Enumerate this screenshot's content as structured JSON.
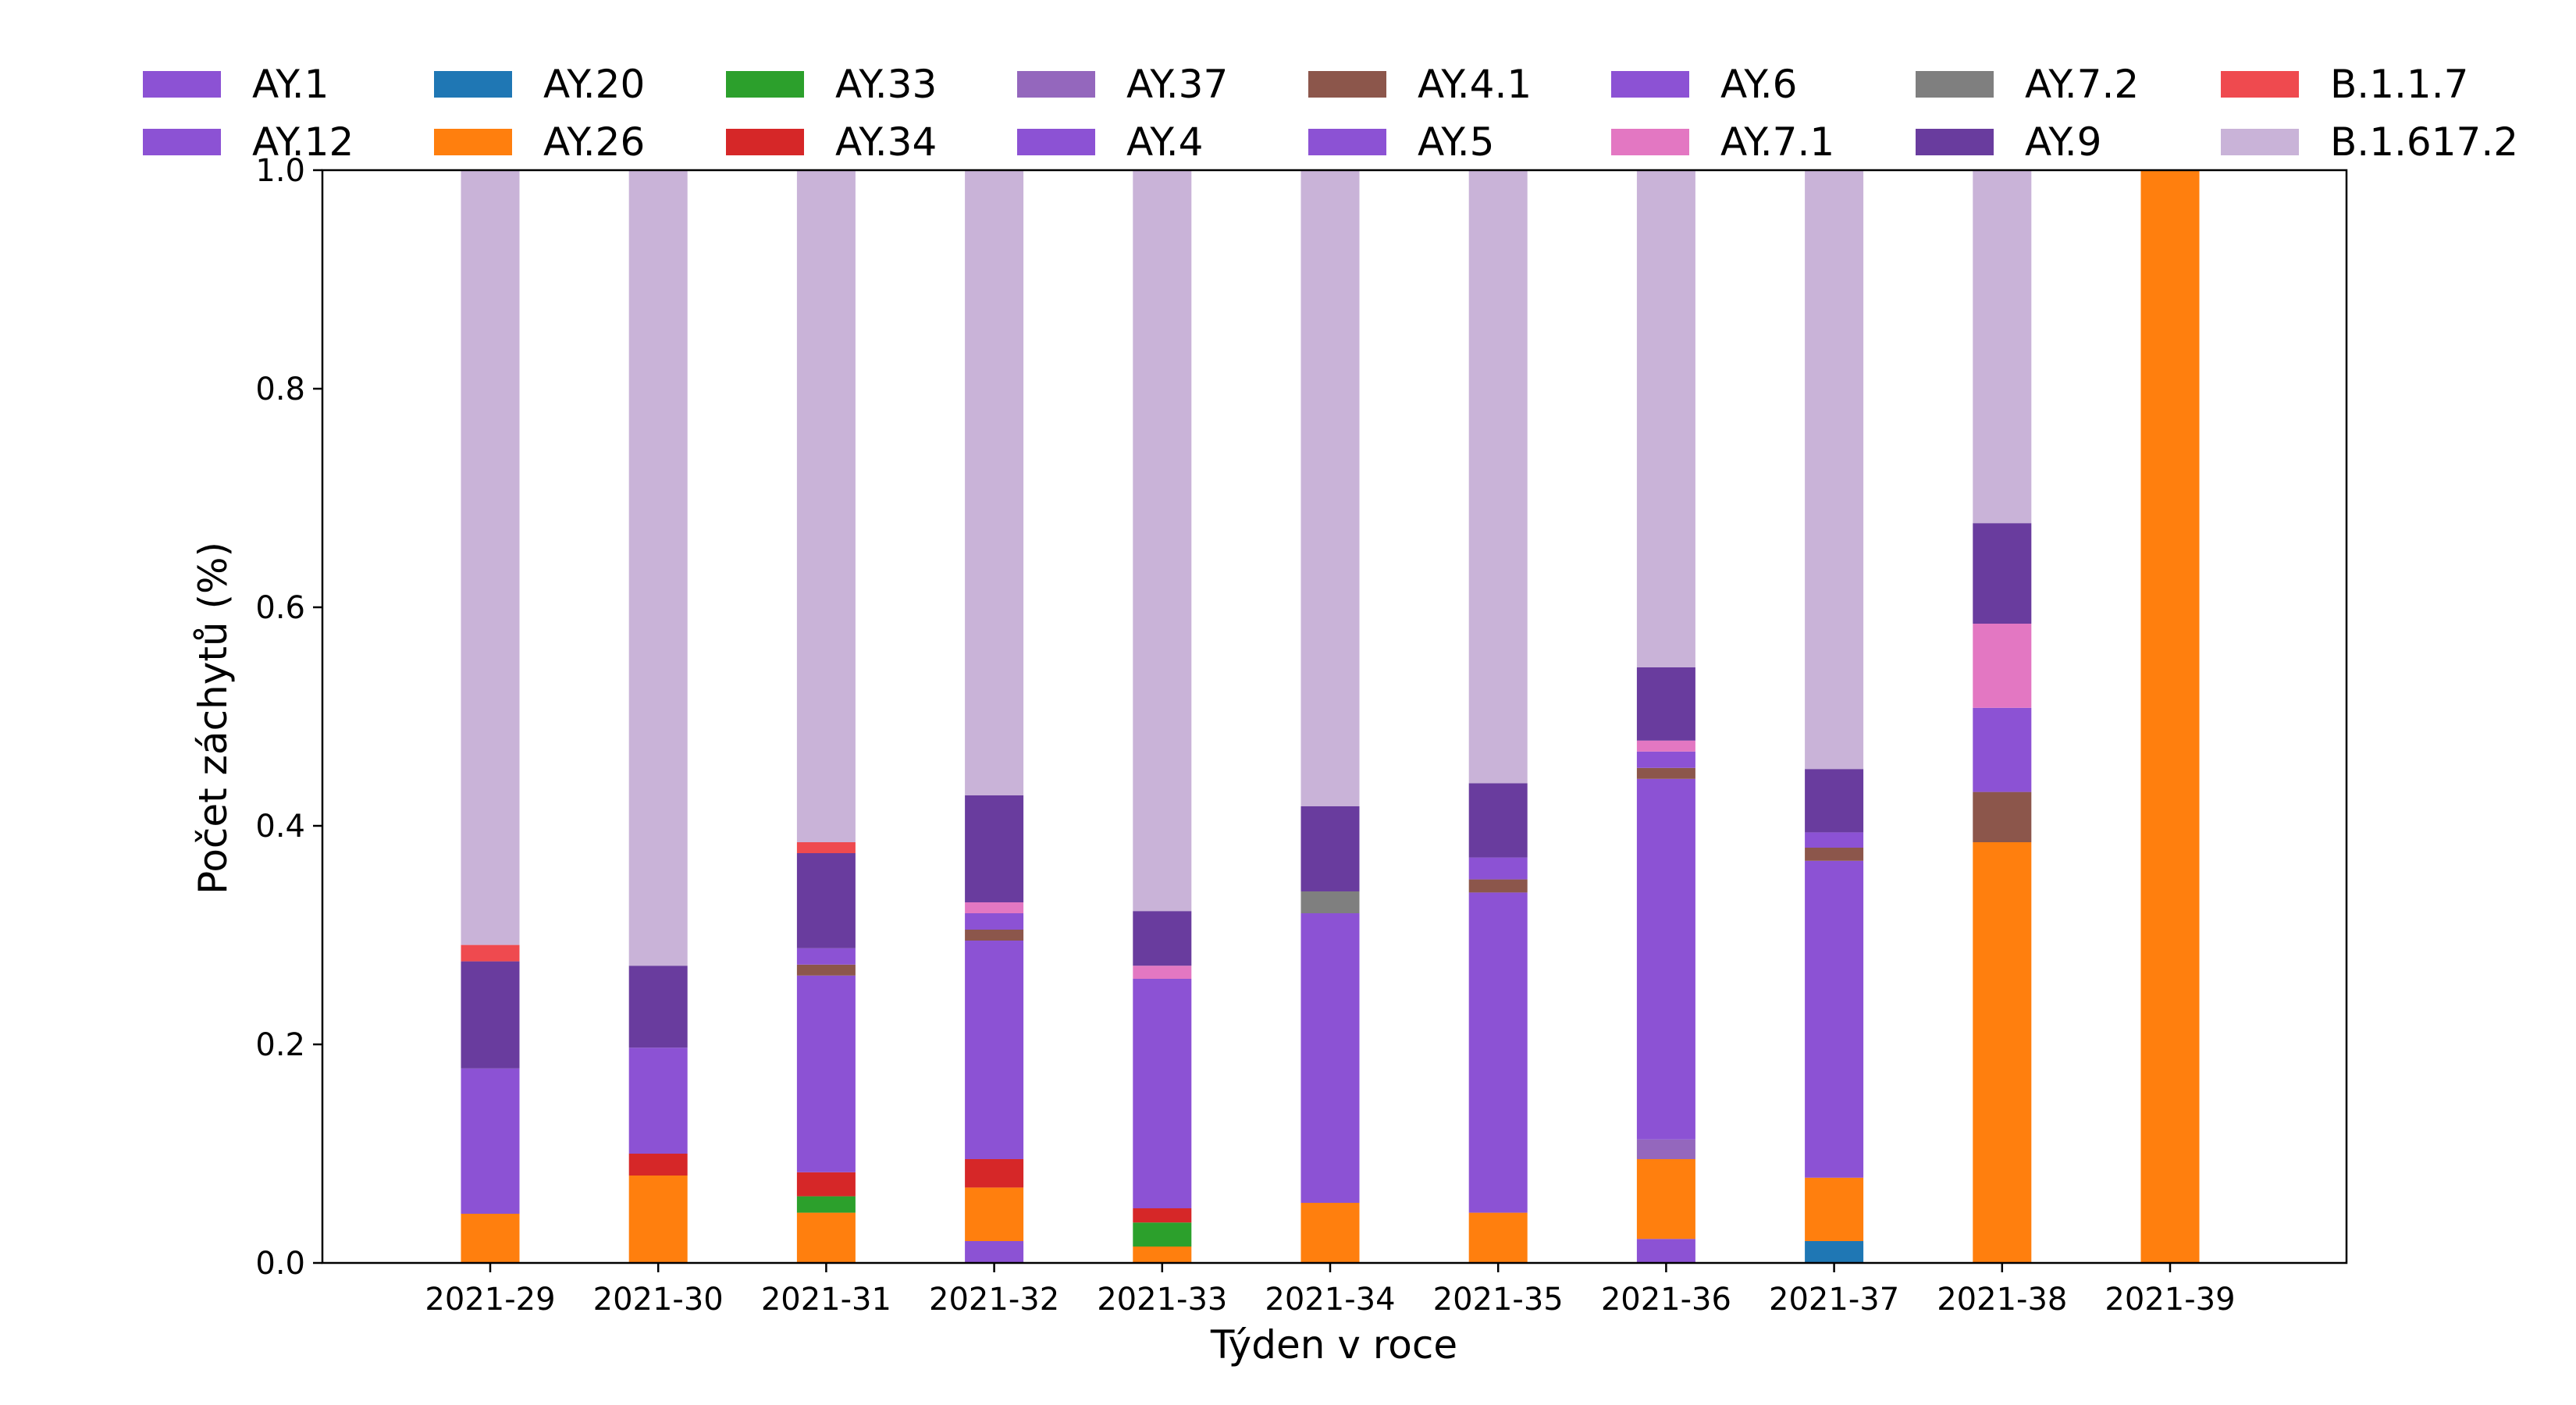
{
  "chart_data": {
    "type": "bar",
    "stacked": true,
    "title": "",
    "xlabel": "Týden v roce",
    "ylabel": "Počet záchytů (%)",
    "ylim": [
      0,
      1.0
    ],
    "yticks": [
      "0.0",
      "0.2",
      "0.4",
      "0.6",
      "0.8",
      "1.0"
    ],
    "categories": [
      "2021-29",
      "2021-30",
      "2021-31",
      "2021-32",
      "2021-33",
      "2021-34",
      "2021-35",
      "2021-36",
      "2021-37",
      "2021-38",
      "2021-39"
    ],
    "legend_position": "top",
    "series": [
      {
        "name": "AY.1",
        "color": "#8c52d4",
        "values": [
          0,
          0,
          0,
          0.02,
          0,
          0,
          0,
          0.022,
          0,
          0,
          0
        ]
      },
      {
        "name": "AY.20",
        "color": "#1f77b4",
        "values": [
          0,
          0,
          0,
          0,
          0,
          0,
          0,
          0,
          0.02,
          0,
          0
        ]
      },
      {
        "name": "AY.26",
        "color": "#ff7f0e",
        "values": [
          0.045,
          0.08,
          0.046,
          0.049,
          0.015,
          0.055,
          0.046,
          0.073,
          0.058,
          0.385,
          1.0
        ]
      },
      {
        "name": "AY.33",
        "color": "#2ca02c",
        "values": [
          0,
          0,
          0.015,
          0,
          0.022,
          0,
          0,
          0,
          0,
          0,
          0
        ]
      },
      {
        "name": "AY.34",
        "color": "#d62728",
        "values": [
          0,
          0.02,
          0.022,
          0.026,
          0.013,
          0,
          0,
          0,
          0,
          0,
          0
        ]
      },
      {
        "name": "AY.37",
        "color": "#9467bd",
        "values": [
          0,
          0,
          0,
          0,
          0,
          0,
          0,
          0.018,
          0,
          0,
          0
        ]
      },
      {
        "name": "AY.12",
        "color": "#8c52d4",
        "values": [
          0.133,
          0.097,
          0.18,
          0.2,
          0.21,
          0.265,
          0.293,
          0.33,
          0.29,
          0,
          0
        ]
      },
      {
        "name": "AY.4.1",
        "color": "#8c564b",
        "values": [
          0,
          0,
          0.01,
          0.01,
          0,
          0,
          0.012,
          0.01,
          0.012,
          0.046,
          0
        ]
      },
      {
        "name": "AY.4",
        "color": "#8c52d4",
        "values": [
          0,
          0,
          0.015,
          0.015,
          0,
          0,
          0.02,
          0.015,
          0.014,
          0.077,
          0
        ]
      },
      {
        "name": "AY.5",
        "color": "#8c52d4",
        "values": [
          0,
          0,
          0,
          0,
          0,
          0,
          0,
          0,
          0,
          0,
          0
        ]
      },
      {
        "name": "AY.6",
        "color": "#8c52d4",
        "values": [
          0,
          0,
          0,
          0,
          0,
          0,
          0,
          0,
          0,
          0,
          0
        ]
      },
      {
        "name": "AY.7.1",
        "color": "#e377c2",
        "values": [
          0,
          0,
          0,
          0.01,
          0.012,
          0,
          0,
          0.01,
          0,
          0.077,
          0
        ]
      },
      {
        "name": "AY.7.2",
        "color": "#7f7f7f",
        "values": [
          0,
          0,
          0,
          0,
          0,
          0.02,
          0,
          0,
          0,
          0,
          0
        ]
      },
      {
        "name": "AY.9",
        "color": "#693c9e",
        "values": [
          0.098,
          0.075,
          0.087,
          0.098,
          0.05,
          0.078,
          0.068,
          0.067,
          0.058,
          0.092,
          0
        ]
      },
      {
        "name": "B.1.1.7",
        "color": "#ef4a4f",
        "values": [
          0.015,
          0,
          0.01,
          0,
          0,
          0,
          0,
          0,
          0,
          0,
          0
        ]
      },
      {
        "name": "B.1.617.2",
        "color": "#c9b3d8",
        "values": [
          0.709,
          0.728,
          0.615,
          0.572,
          0.678,
          0.582,
          0.561,
          0.455,
          0.548,
          0.323,
          0
        ]
      }
    ],
    "legend": [
      {
        "name": "AY.1",
        "color": "#8c52d4"
      },
      {
        "name": "AY.12",
        "color": "#8c52d4"
      },
      {
        "name": "AY.20",
        "color": "#1f77b4"
      },
      {
        "name": "AY.26",
        "color": "#ff7f0e"
      },
      {
        "name": "AY.33",
        "color": "#2ca02c"
      },
      {
        "name": "AY.34",
        "color": "#d62728"
      },
      {
        "name": "AY.37",
        "color": "#9467bd"
      },
      {
        "name": "AY.4",
        "color": "#8c52d4"
      },
      {
        "name": "AY.4.1",
        "color": "#8c564b"
      },
      {
        "name": "AY.5",
        "color": "#8c52d4"
      },
      {
        "name": "AY.6",
        "color": "#8c52d4"
      },
      {
        "name": "AY.7.1",
        "color": "#e377c2"
      },
      {
        "name": "AY.7.2",
        "color": "#7f7f7f"
      },
      {
        "name": "AY.9",
        "color": "#693c9e"
      },
      {
        "name": "B.1.1.7",
        "color": "#ef4a4f"
      },
      {
        "name": "B.1.617.2",
        "color": "#c9b3d8"
      }
    ]
  }
}
